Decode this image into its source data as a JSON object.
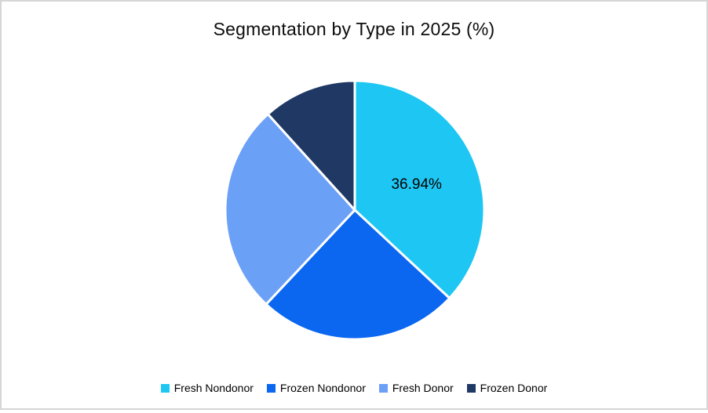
{
  "frame": {
    "background": "#ffffff",
    "border_color": "#d6d6d6"
  },
  "chart_data": {
    "type": "pie",
    "title": "Segmentation by Type in 2025 (%)",
    "unit": "%",
    "categories": [
      "Fresh Nondonor",
      "Frozen Nondonor",
      "Fresh Donor",
      "Frozen Donor"
    ],
    "values": [
      36.94,
      25.06,
      26.3,
      11.7
    ],
    "colors": [
      "#1EC7F3",
      "#0B66F0",
      "#6BA0F7",
      "#1F3864"
    ],
    "data_labels": [
      "36.94%",
      "",
      "",
      ""
    ],
    "start_angle_deg": 0,
    "direction": "clockwise",
    "legend_position": "bottom",
    "slice_separator_color": "#ffffff"
  }
}
